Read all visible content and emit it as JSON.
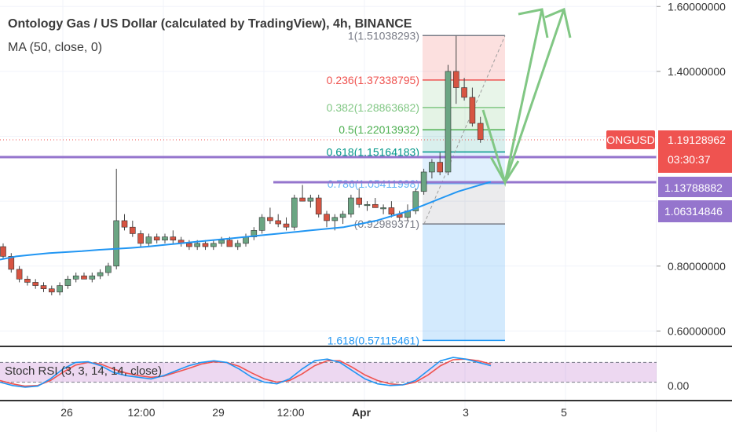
{
  "header": {
    "title": "Ontology Gas / US Dollar (calculated by TradingView), 4h, BINANCE",
    "indicator": "MA (50, close, 0)"
  },
  "chart_data": {
    "type": "candlestick",
    "symbol": "ONGUSD",
    "price_axis": {
      "ticks": [
        "1.60000000",
        "1.40000000",
        "0.80000000",
        "0.60000000"
      ],
      "ylim": [
        0.555,
        1.62
      ]
    },
    "time_axis": {
      "ticks": [
        "26",
        "12:00",
        "29",
        "12:00",
        "Apr",
        "3",
        "5"
      ]
    },
    "last_price": {
      "label": "ONGUSD",
      "value": "1.19128962",
      "countdown": "03:30:37",
      "color": "#ef5350"
    },
    "horizontal_lines": [
      {
        "value": "1.13788882",
        "color": "#9575cd"
      },
      {
        "value": "1.06314846",
        "color": "#9575cd"
      }
    ],
    "fib_levels": [
      {
        "label": "1(1.51038293)",
        "value": 1.51038293,
        "color": "#787b86"
      },
      {
        "label": "0.236(1.37338795)",
        "value": 1.37338795,
        "color": "#ef5350"
      },
      {
        "label": "0.382(1.28863682)",
        "value": 1.28863682,
        "color": "#81c784"
      },
      {
        "label": "0.5(1.22013932)",
        "value": 1.22013932,
        "color": "#4caf50"
      },
      {
        "label": "0.618(1.15164183)",
        "value": 1.15164183,
        "color": "#009688"
      },
      {
        "label": "0.786(1.05411998)",
        "value": 1.05411998,
        "color": "#64b5f6"
      },
      {
        "label": "(0.92989371)",
        "value": 0.92989371,
        "color": "#787b86"
      },
      {
        "label": "1.618(0.57115461)",
        "value": 0.57115461,
        "color": "#2196f3"
      }
    ],
    "candles": [
      [
        0.86,
        0.87,
        0.82,
        0.83
      ],
      [
        0.83,
        0.84,
        0.78,
        0.79
      ],
      [
        0.79,
        0.8,
        0.75,
        0.76
      ],
      [
        0.76,
        0.77,
        0.74,
        0.75
      ],
      [
        0.75,
        0.76,
        0.73,
        0.74
      ],
      [
        0.74,
        0.75,
        0.72,
        0.73
      ],
      [
        0.73,
        0.74,
        0.71,
        0.72
      ],
      [
        0.72,
        0.75,
        0.71,
        0.74
      ],
      [
        0.74,
        0.77,
        0.73,
        0.76
      ],
      [
        0.76,
        0.78,
        0.75,
        0.77
      ],
      [
        0.77,
        0.78,
        0.76,
        0.76
      ],
      [
        0.76,
        0.78,
        0.75,
        0.77
      ],
      [
        0.77,
        0.79,
        0.76,
        0.78
      ],
      [
        0.78,
        0.81,
        0.77,
        0.8
      ],
      [
        0.8,
        1.1,
        0.79,
        0.94
      ],
      [
        0.94,
        0.96,
        0.91,
        0.92
      ],
      [
        0.92,
        0.94,
        0.89,
        0.9
      ],
      [
        0.9,
        0.91,
        0.86,
        0.87
      ],
      [
        0.87,
        0.9,
        0.86,
        0.89
      ],
      [
        0.89,
        0.9,
        0.87,
        0.88
      ],
      [
        0.88,
        0.9,
        0.87,
        0.89
      ],
      [
        0.89,
        0.91,
        0.87,
        0.88
      ],
      [
        0.88,
        0.89,
        0.86,
        0.87
      ],
      [
        0.87,
        0.88,
        0.85,
        0.86
      ],
      [
        0.86,
        0.88,
        0.85,
        0.87
      ],
      [
        0.87,
        0.88,
        0.85,
        0.86
      ],
      [
        0.86,
        0.88,
        0.85,
        0.87
      ],
      [
        0.87,
        0.89,
        0.86,
        0.88
      ],
      [
        0.88,
        0.89,
        0.86,
        0.86
      ],
      [
        0.86,
        0.88,
        0.85,
        0.87
      ],
      [
        0.87,
        0.9,
        0.86,
        0.89
      ],
      [
        0.89,
        0.92,
        0.88,
        0.91
      ],
      [
        0.91,
        0.96,
        0.9,
        0.95
      ],
      [
        0.95,
        0.98,
        0.93,
        0.94
      ],
      [
        0.94,
        0.96,
        0.92,
        0.93
      ],
      [
        0.93,
        0.95,
        0.91,
        0.92
      ],
      [
        0.92,
        1.02,
        0.91,
        1.01
      ],
      [
        1.01,
        1.05,
        1.0,
        1.0
      ],
      [
        1.0,
        1.02,
        0.98,
        1.01
      ],
      [
        1.01,
        1.02,
        0.95,
        0.96
      ],
      [
        0.96,
        0.97,
        0.92,
        0.94
      ],
      [
        0.94,
        0.96,
        0.91,
        0.95
      ],
      [
        0.95,
        0.97,
        0.93,
        0.96
      ],
      [
        0.96,
        1.02,
        0.95,
        1.01
      ],
      [
        1.01,
        1.04,
        0.98,
        0.99
      ],
      [
        0.99,
        1.0,
        0.97,
        0.99
      ],
      [
        0.99,
        1.01,
        0.98,
        0.98
      ],
      [
        0.98,
        0.99,
        0.96,
        0.98
      ],
      [
        0.98,
        1.0,
        0.95,
        0.96
      ],
      [
        0.96,
        0.97,
        0.94,
        0.95
      ],
      [
        0.95,
        0.99,
        0.94,
        0.97
      ],
      [
        0.97,
        1.04,
        0.96,
        1.03
      ],
      [
        1.03,
        1.1,
        1.02,
        1.09
      ],
      [
        1.09,
        1.13,
        1.07,
        1.12
      ],
      [
        1.12,
        1.15,
        1.08,
        1.09
      ],
      [
        1.09,
        1.42,
        1.08,
        1.4
      ],
      [
        1.4,
        1.51,
        1.3,
        1.35
      ],
      [
        1.35,
        1.38,
        1.31,
        1.32
      ],
      [
        1.32,
        1.35,
        1.23,
        1.24
      ],
      [
        1.24,
        1.26,
        1.18,
        1.19
      ]
    ],
    "ma50": [
      0.82,
      0.83,
      0.835,
      0.84,
      0.843,
      0.846,
      0.85,
      0.853,
      0.856,
      0.86,
      0.865,
      0.87,
      0.875,
      0.88,
      0.885,
      0.89,
      0.895,
      0.9,
      0.905,
      0.91,
      0.915,
      0.92,
      0.93,
      0.94,
      0.955,
      0.97,
      0.99,
      1.01,
      1.03,
      1.045,
      1.06
    ],
    "stoch_rsi": {
      "label": "Stoch RSI (3, 3, 14, 14, close)",
      "ticks": [
        "0.00"
      ],
      "k": [
        20,
        10,
        5,
        8,
        30,
        60,
        80,
        82,
        70,
        50,
        40,
        35,
        30,
        40,
        55,
        70,
        80,
        85,
        80,
        60,
        35,
        20,
        15,
        30,
        60,
        85,
        90,
        80,
        55,
        30,
        15,
        10,
        12,
        25,
        55,
        85,
        95,
        90,
        80,
        70
      ],
      "d": [
        25,
        15,
        8,
        10,
        25,
        50,
        72,
        80,
        75,
        60,
        48,
        40,
        35,
        38,
        50,
        62,
        75,
        82,
        80,
        68,
        48,
        30,
        20,
        25,
        45,
        70,
        85,
        85,
        65,
        42,
        25,
        15,
        12,
        20,
        42,
        70,
        88,
        90,
        85,
        75
      ]
    }
  }
}
